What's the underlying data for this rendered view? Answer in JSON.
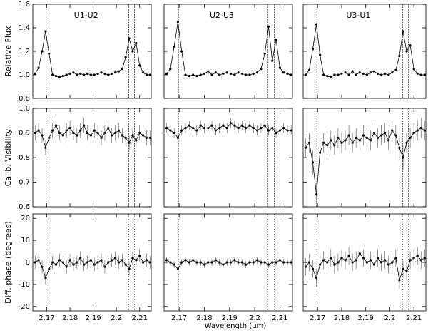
{
  "chart_data": {
    "type": "line",
    "xlabel": "Wavelength (μm)",
    "x": [
      2.165,
      2.1665,
      2.168,
      2.1695,
      2.171,
      2.1725,
      2.174,
      2.1755,
      2.177,
      2.1785,
      2.18,
      2.1815,
      2.183,
      2.1845,
      2.186,
      2.1875,
      2.189,
      2.1905,
      2.192,
      2.1935,
      2.195,
      2.1965,
      2.198,
      2.1995,
      2.201,
      2.2025,
      2.204,
      2.2055,
      2.207,
      2.2085,
      2.21,
      2.2115,
      2.213,
      2.2145
    ],
    "xlim": [
      2.164,
      2.215
    ],
    "xticks": [
      2.17,
      2.18,
      2.19,
      2.2,
      2.21
    ],
    "reference_lines": [
      2.1697,
      2.2053,
      2.2078
    ],
    "color": "#000000",
    "column_titles": [
      "U1-U2",
      "U2-U3",
      "U3-U1"
    ],
    "rows": [
      {
        "ylabel": "Relative Flux",
        "ylim": [
          0.8,
          1.6
        ],
        "yticks": [
          0.8,
          {
            "value": 1.0,
            "label": "1.0"
          },
          1.2,
          1.4,
          1.6
        ]
      },
      {
        "ylabel": "Calib. Visibility",
        "ylim": [
          0.6,
          1.0
        ],
        "yticks": [
          0.6,
          0.7,
          0.8,
          0.9,
          {
            "value": 1.0,
            "label": "1.0"
          }
        ]
      },
      {
        "ylabel": "Diff. phase (degrees)",
        "ylim": [
          -22,
          22
        ],
        "yticks": [
          -20,
          -10,
          0,
          10,
          20
        ]
      }
    ],
    "panels": [
      [
        {
          "values": [
            1.01,
            1.06,
            1.2,
            1.37,
            1.18,
            1.0,
            0.99,
            0.98,
            0.99,
            1.0,
            1.01,
            1.02,
            1.0,
            1.01,
            1.0,
            1.01,
            1.0,
            1.0,
            1.01,
            1.02,
            1.01,
            1.0,
            1.01,
            1.02,
            1.03,
            1.05,
            1.15,
            1.31,
            1.2,
            1.27,
            1.08,
            1.02,
            1.0,
            1.0
          ]
        },
        {
          "values": [
            1.01,
            1.05,
            1.24,
            1.45,
            1.2,
            1.0,
            0.99,
            1.0,
            0.99,
            1.0,
            1.01,
            1.03,
            1.0,
            1.02,
            1.0,
            1.01,
            1.02,
            1.01,
            1.0,
            1.02,
            1.01,
            1.0,
            1.0,
            1.01,
            1.02,
            1.05,
            1.18,
            1.41,
            1.12,
            1.3,
            1.06,
            1.02,
            1.01,
            1.0
          ]
        },
        {
          "values": [
            1.0,
            1.04,
            1.22,
            1.43,
            1.17,
            1.0,
            0.99,
            0.98,
            1.0,
            1.0,
            1.01,
            1.02,
            1.0,
            1.03,
            1.0,
            1.02,
            1.01,
            1.0,
            1.02,
            1.03,
            1.01,
            1.0,
            1.01,
            1.0,
            1.02,
            1.04,
            1.16,
            1.37,
            1.2,
            1.25,
            1.05,
            1.01,
            1.0,
            1.0
          ]
        }
      ],
      [
        {
          "values": [
            0.9,
            0.91,
            0.89,
            0.84,
            0.88,
            0.91,
            0.93,
            0.9,
            0.89,
            0.91,
            0.92,
            0.9,
            0.89,
            0.91,
            0.93,
            0.9,
            0.89,
            0.91,
            0.9,
            0.88,
            0.9,
            0.92,
            0.89,
            0.9,
            0.91,
            0.89,
            0.88,
            0.86,
            0.89,
            0.87,
            0.9,
            0.89,
            0.88,
            0.88
          ],
          "errors": [
            0.03,
            0.03,
            0.03,
            0.03,
            0.03,
            0.03,
            0.03,
            0.03,
            0.03,
            0.03,
            0.03,
            0.03,
            0.03,
            0.03,
            0.03,
            0.03,
            0.03,
            0.03,
            0.03,
            0.03,
            0.03,
            0.03,
            0.03,
            0.03,
            0.03,
            0.03,
            0.03,
            0.03,
            0.03,
            0.03,
            0.03,
            0.03,
            0.03,
            0.03
          ]
        },
        {
          "values": [
            0.92,
            0.91,
            0.9,
            0.88,
            0.91,
            0.92,
            0.93,
            0.92,
            0.91,
            0.93,
            0.92,
            0.92,
            0.93,
            0.91,
            0.92,
            0.93,
            0.92,
            0.94,
            0.93,
            0.92,
            0.93,
            0.92,
            0.93,
            0.92,
            0.91,
            0.92,
            0.93,
            0.91,
            0.92,
            0.9,
            0.91,
            0.92,
            0.91,
            0.91
          ],
          "errors": [
            0.02,
            0.02,
            0.02,
            0.02,
            0.02,
            0.02,
            0.02,
            0.02,
            0.02,
            0.02,
            0.02,
            0.02,
            0.02,
            0.02,
            0.02,
            0.02,
            0.02,
            0.02,
            0.02,
            0.02,
            0.02,
            0.02,
            0.02,
            0.02,
            0.02,
            0.02,
            0.02,
            0.02,
            0.02,
            0.02,
            0.02,
            0.02,
            0.02,
            0.02
          ]
        },
        {
          "values": [
            0.84,
            0.86,
            0.78,
            0.65,
            0.82,
            0.86,
            0.85,
            0.87,
            0.85,
            0.88,
            0.86,
            0.87,
            0.89,
            0.86,
            0.88,
            0.87,
            0.89,
            0.88,
            0.87,
            0.9,
            0.88,
            0.89,
            0.9,
            0.87,
            0.91,
            0.89,
            0.84,
            0.8,
            0.86,
            0.88,
            0.9,
            0.91,
            0.92,
            0.91
          ],
          "errors": [
            0.04,
            0.04,
            0.05,
            0.05,
            0.04,
            0.04,
            0.04,
            0.04,
            0.04,
            0.04,
            0.04,
            0.04,
            0.04,
            0.04,
            0.04,
            0.04,
            0.04,
            0.04,
            0.04,
            0.04,
            0.04,
            0.04,
            0.04,
            0.04,
            0.04,
            0.04,
            0.05,
            0.05,
            0.04,
            0.04,
            0.04,
            0.04,
            0.04,
            0.04
          ]
        }
      ],
      [
        {
          "values": [
            0,
            1,
            -2,
            -7,
            -3,
            0,
            -1,
            1,
            0,
            -2,
            1,
            -1,
            0,
            2,
            -1,
            0,
            1,
            -1,
            0,
            1,
            -2,
            0,
            1,
            2,
            0,
            1,
            -1,
            -3,
            2,
            1,
            3,
            0,
            1,
            0
          ],
          "errors": [
            3,
            3,
            3,
            3,
            3,
            3,
            3,
            3,
            3,
            3,
            3,
            3,
            3,
            3,
            3,
            3,
            3,
            3,
            3,
            3,
            3,
            3,
            3,
            3,
            3,
            3,
            3,
            3,
            3,
            3,
            3,
            3,
            3,
            3
          ]
        },
        {
          "values": [
            1,
            0,
            -1,
            -3,
            0,
            1,
            0,
            1,
            0,
            0,
            -1,
            0,
            0,
            1,
            0,
            -1,
            0,
            0,
            1,
            0,
            0,
            -1,
            0,
            0,
            1,
            0,
            0,
            -1,
            0,
            0,
            1,
            0,
            0,
            0
          ],
          "errors": [
            1.5,
            1.5,
            1.5,
            1.5,
            1.5,
            1.5,
            1.5,
            1.5,
            1.5,
            1.5,
            1.5,
            1.5,
            1.5,
            1.5,
            1.5,
            1.5,
            1.5,
            1.5,
            1.5,
            1.5,
            1.5,
            1.5,
            1.5,
            1.5,
            1.5,
            1.5,
            1.5,
            1.5,
            1.5,
            1.5,
            1.5,
            1.5,
            1.5,
            1.5
          ]
        },
        {
          "values": [
            -2,
            0,
            -3,
            -7,
            -1,
            1,
            0,
            2,
            -1,
            0,
            2,
            1,
            3,
            0,
            1,
            4,
            2,
            0,
            1,
            -1,
            2,
            0,
            1,
            -1,
            0,
            2,
            -8,
            -3,
            -4,
            1,
            2,
            3,
            1,
            2
          ],
          "errors": [
            4,
            4,
            4,
            4,
            4,
            4,
            4,
            4,
            4,
            4,
            4,
            4,
            4,
            4,
            4,
            4,
            4,
            4,
            4,
            4,
            4,
            4,
            4,
            4,
            4,
            4,
            4,
            4,
            4,
            4,
            4,
            4,
            4,
            4
          ]
        }
      ]
    ]
  }
}
